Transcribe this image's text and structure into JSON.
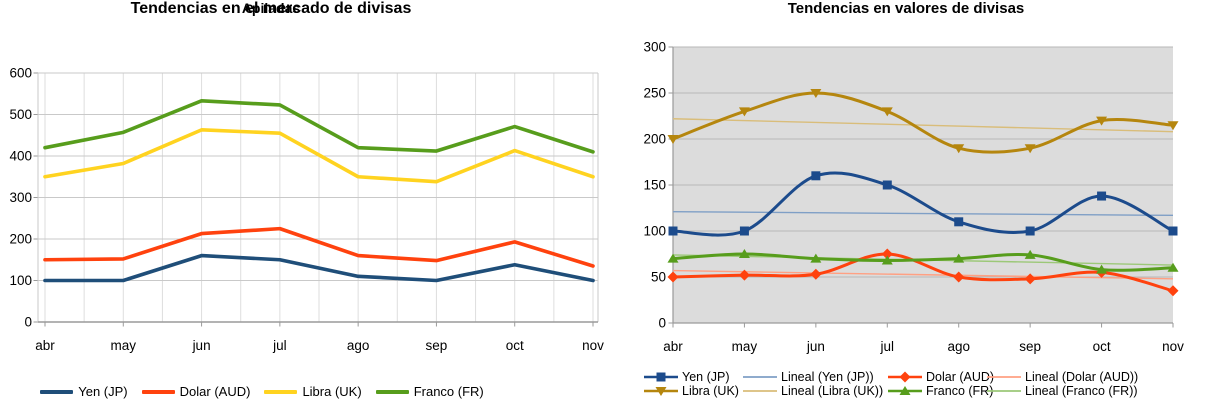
{
  "window": {
    "background": "#ffffff"
  },
  "chart_data": [
    {
      "type": "line",
      "variant": "stacked",
      "title": "Tendencias en el mercado de divisas",
      "subtitle": "Apiladas",
      "categories": [
        "abr",
        "may",
        "jun",
        "jul",
        "ago",
        "sep",
        "oct",
        "nov"
      ],
      "series": [
        {
          "name": "Yen (JP)",
          "color": "#1f4e79",
          "values": [
            100,
            100,
            160,
            150,
            110,
            100,
            138,
            100
          ]
        },
        {
          "name": "Dolar (AUD)",
          "color": "#ff420e",
          "values": [
            50,
            52,
            53,
            75,
            50,
            48,
            55,
            35
          ]
        },
        {
          "name": "Libra (UK)",
          "color": "#ffd320",
          "values": [
            200,
            230,
            250,
            230,
            190,
            190,
            220,
            215
          ]
        },
        {
          "name": "Franco (FR)",
          "color": "#579d1c",
          "values": [
            70,
            75,
            70,
            68,
            70,
            74,
            58,
            60
          ]
        }
      ],
      "ylim": [
        0,
        600
      ],
      "yticks": [
        0,
        100,
        200,
        300,
        400,
        500,
        600
      ],
      "grid": "both",
      "grid_color": "#c9c9c9",
      "minor_grid_color": "#dedede",
      "axis_color": "#9a9a9a",
      "legend_position": "bottom",
      "legend": [
        "Yen (JP)",
        "Dolar (AUD)",
        "Libra (UK)",
        "Franco (FR)"
      ]
    },
    {
      "type": "line",
      "variant": "smooth-with-trendlines",
      "title": "Tendencias en valores de divisas",
      "categories": [
        "abr",
        "may",
        "jun",
        "jul",
        "ago",
        "sep",
        "oct",
        "nov"
      ],
      "plot_background": "#dcdcdc",
      "series": [
        {
          "name": "Yen (JP)",
          "color": "#1c4b8c",
          "marker": "square",
          "values": [
            100,
            100,
            160,
            150,
            110,
            100,
            138,
            100
          ],
          "trend": {
            "name": "Lineal (Yen (JP))",
            "color": "#7f9fc6",
            "start": 121,
            "end": 117
          }
        },
        {
          "name": "Dolar (AUD)",
          "color": "#ff420e",
          "marker": "diamond",
          "values": [
            50,
            52,
            53,
            75,
            50,
            48,
            55,
            35
          ],
          "trend": {
            "name": "Lineal (Dolar (AUD))",
            "color": "#ffa083",
            "start": 57,
            "end": 48
          }
        },
        {
          "name": "Libra (UK)",
          "color": "#b5860e",
          "marker": "triangle-down",
          "values": [
            200,
            230,
            250,
            230,
            190,
            190,
            220,
            215
          ],
          "trend": {
            "name": "Lineal (Libra (UK))",
            "color": "#d9bd7a",
            "start": 222,
            "end": 208
          }
        },
        {
          "name": "Franco (FR)",
          "color": "#579d1c",
          "marker": "triangle-up",
          "values": [
            70,
            75,
            70,
            68,
            70,
            74,
            58,
            60
          ],
          "trend": {
            "name": "Lineal (Franco (FR))",
            "color": "#9cc878",
            "start": 74,
            "end": 63
          }
        }
      ],
      "ylim": [
        0,
        300
      ],
      "yticks": [
        0,
        50,
        100,
        150,
        200,
        250,
        300
      ],
      "grid": "horizontal",
      "grid_color": "#b7b7b7",
      "axis_color": "#9a9a9a",
      "legend_position": "bottom",
      "legend_rows": [
        [
          "Yen (JP)",
          "Lineal (Yen (JP))",
          "Dolar (AUD)",
          "Lineal (Dolar (AUD))"
        ],
        [
          "Libra (UK)",
          "Lineal (Libra (UK))",
          "Franco (FR)",
          "Lineal (Franco (FR))"
        ]
      ]
    }
  ]
}
